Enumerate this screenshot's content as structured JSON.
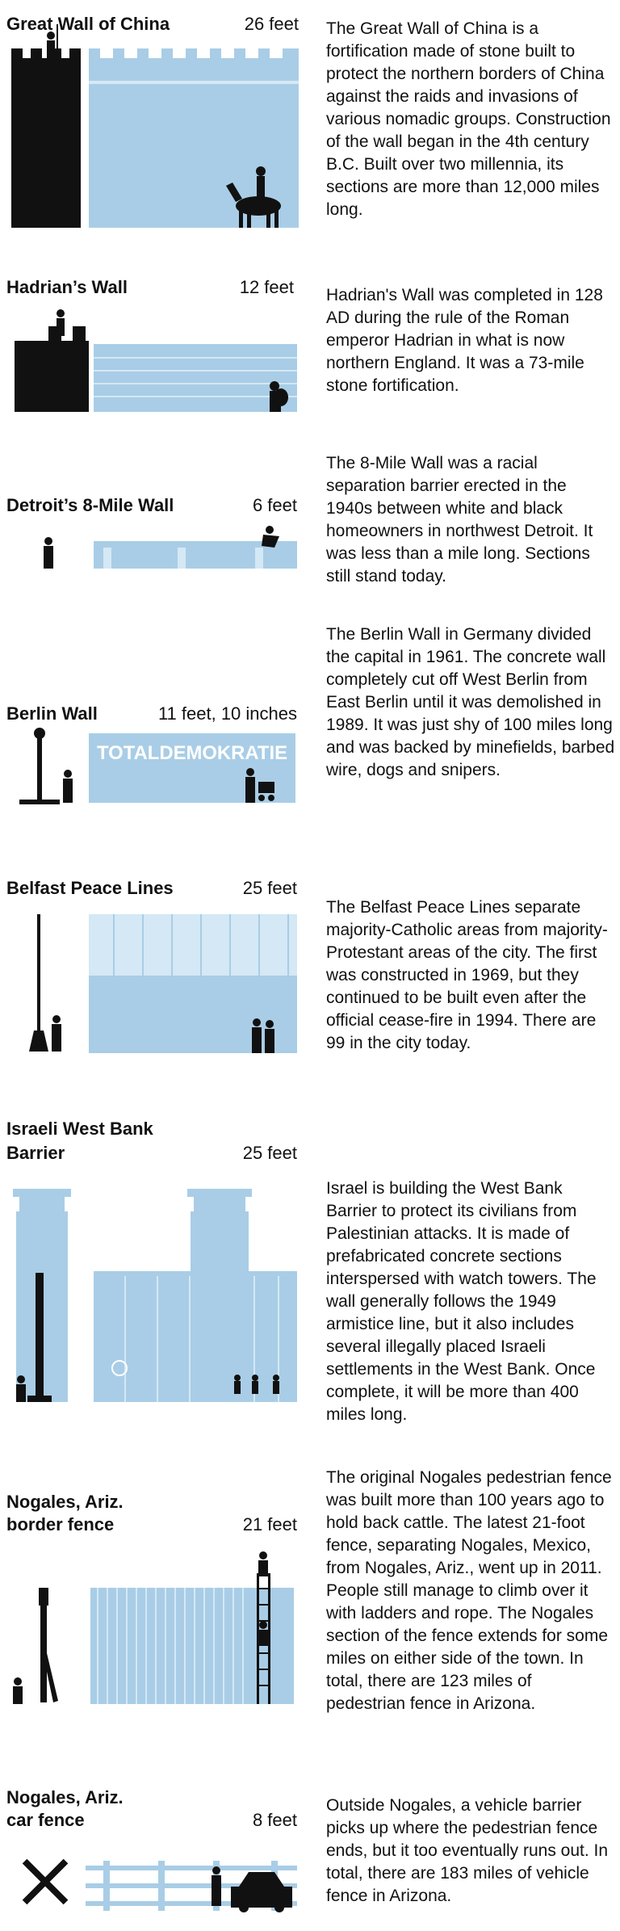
{
  "colors": {
    "wall": "#a9cde6",
    "wall_light": "#d4e8f5",
    "silhouette": "#111111",
    "background": "#ffffff"
  },
  "walls": [
    {
      "name": "Great Wall of China",
      "height": "26 feet",
      "description": "The Great Wall of China is a fortification made of stone built to protect the northern borders of China against the raids and invasions of various nomadic groups. Construction of the wall began in the 4th century B.C. Built over two millennia, its sections are more than 12,000 miles long."
    },
    {
      "name": "Hadrian’s Wall",
      "height": "12 feet",
      "description": "Hadrian's Wall was completed in 128 AD during the rule of the Roman emperor Hadrian in what is now northern England. It was a 73-mile stone fortification."
    },
    {
      "name": "Detroit’s 8-Mile Wall",
      "height": "6 feet",
      "description": "The 8-Mile Wall was a racial separation barrier erected in the 1940s between white and black homeowners in northwest Detroit. It was less than a mile long. Sections still stand today."
    },
    {
      "name": "Berlin Wall",
      "height": "11 feet, 10 inches",
      "graffiti": "TOTALDEMOKRATIE",
      "description": "The Berlin Wall in Germany divided the capital in 1961. The concrete wall completely cut off West Berlin from East Berlin until it was demolished in 1989. It was just shy of 100 miles long and was backed by minefields, barbed wire, dogs and snipers."
    },
    {
      "name": "Belfast Peace Lines",
      "height": "25 feet",
      "description": "The Belfast Peace Lines separate majority-Catholic areas from majority-Protestant areas of the city. The first was constructed in 1969, but they continued to be built even after the official cease-fire in 1994. There are 99 in the city today."
    },
    {
      "name_line1": "Israeli West Bank",
      "name_line2": "Barrier",
      "height": "25 feet",
      "description": "Israel is building the West Bank Barrier to protect its civilians from Palestinian attacks. It is made of prefabricated concrete sections interspersed with watch towers. The wall generally follows the 1949 armistice line, but it also includes several illegally placed Israeli settlements in the West Bank. Once complete, it will be more than 400 miles long."
    },
    {
      "name_line1": "Nogales, Ariz.",
      "name_line2": "border fence",
      "height": "21 feet",
      "description": "The original Nogales pedestrian fence was built more than 100 years ago to hold back cattle. The latest 21-foot fence, separating Nogales, Mexico, from Nogales, Ariz., went up in 2011. People still manage to climb over it with ladders and rope. The Nogales section of the fence extends for some miles on either side of the town. In total, there are 123 miles of pedestrian fence in Arizona."
    },
    {
      "name_line1": "Nogales, Ariz.",
      "name_line2": "car fence",
      "height": "8 feet",
      "description": "Outside Nogales, a vehicle barrier picks up where the pedestrian fence ends, but it too eventually runs out. In total, there are 183 miles of vehicle fence in Arizona."
    }
  ]
}
